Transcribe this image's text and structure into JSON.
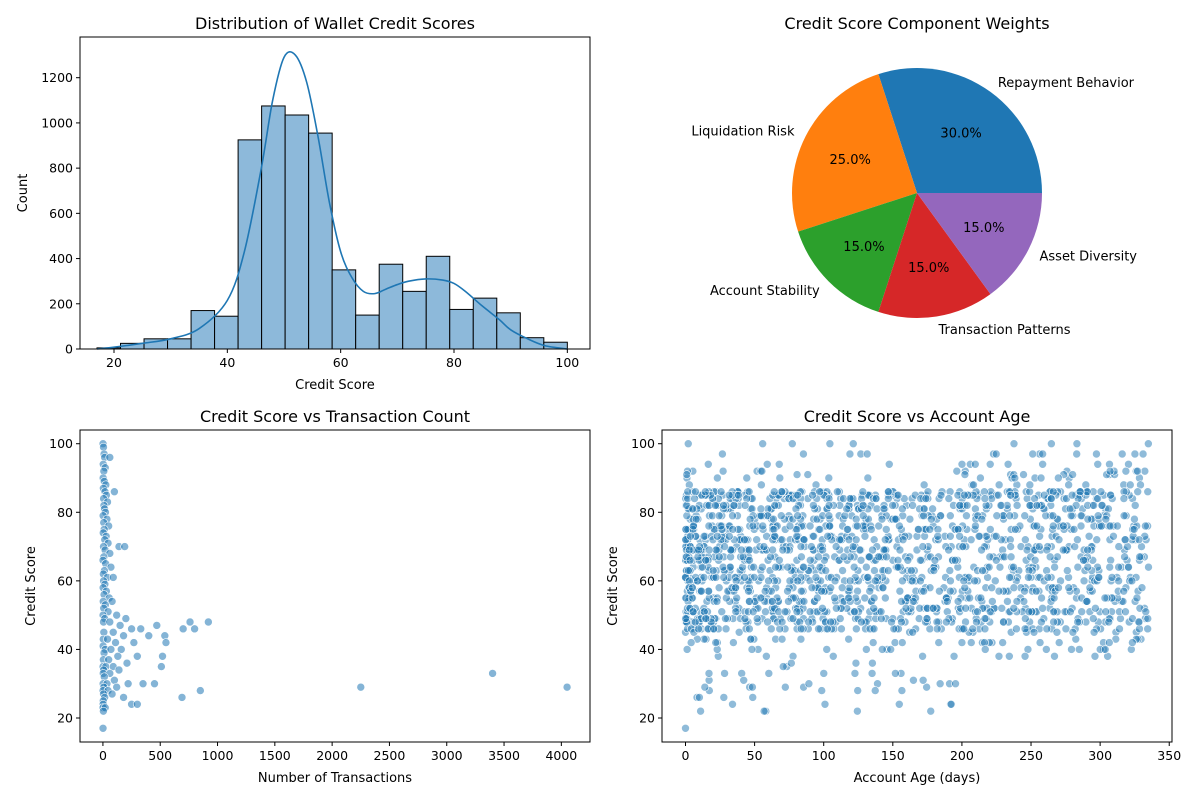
{
  "chart_data": [
    {
      "type": "bar",
      "title": "Distribution of Wallet Credit Scores",
      "xlabel": "Credit Score",
      "ylabel": "Count",
      "xlim": [
        14,
        104
      ],
      "ylim": [
        0,
        1380
      ],
      "xticks": [
        20,
        40,
        60,
        80,
        100
      ],
      "yticks": [
        0,
        200,
        400,
        600,
        800,
        1000,
        1200
      ],
      "bin_edges": [
        17,
        21.15,
        25.3,
        29.45,
        33.6,
        37.75,
        41.9,
        46.05,
        50.2,
        54.35,
        58.5,
        62.65,
        66.8,
        70.95,
        75.1,
        79.25,
        83.4,
        87.55,
        91.7,
        95.85,
        100
      ],
      "values": [
        5,
        25,
        45,
        45,
        170,
        145,
        925,
        1075,
        1035,
        955,
        350,
        150,
        375,
        255,
        410,
        175,
        225,
        160,
        50,
        30
      ],
      "kde_x": [
        17,
        20,
        25,
        30,
        35,
        40,
        43,
        46,
        48,
        50,
        52,
        54,
        56,
        58,
        60,
        62,
        64,
        66,
        68,
        70,
        72,
        75,
        78,
        80,
        82,
        85,
        88,
        90,
        93,
        96,
        100
      ],
      "kde_y": [
        0,
        8,
        25,
        45,
        90,
        215,
        430,
        800,
        1100,
        1290,
        1300,
        1180,
        940,
        650,
        430,
        315,
        255,
        245,
        265,
        285,
        300,
        310,
        305,
        290,
        255,
        190,
        130,
        85,
        45,
        15,
        0
      ],
      "colors": {
        "bar": "#8db9da",
        "edge": "#000000",
        "kde": "#1f77b4"
      }
    },
    {
      "type": "pie",
      "title": "Credit Score Component Weights",
      "labels": [
        "Repayment Behavior",
        "Liquidation Risk",
        "Account Stability",
        "Transaction Patterns",
        "Asset Diversity"
      ],
      "values": [
        30.0,
        25.0,
        15.0,
        15.0,
        15.0
      ],
      "pct_labels": [
        "30.0%",
        "25.0%",
        "15.0%",
        "15.0%",
        "15.0%"
      ],
      "colors": [
        "#1f77b4",
        "#ff7f0e",
        "#2ca02c",
        "#d62728",
        "#9467bd"
      ]
    },
    {
      "type": "scatter",
      "title": "Credit Score vs Transaction Count",
      "xlabel": "Number of Transactions",
      "ylabel": "Credit Score",
      "xlim": [
        -200,
        4250
      ],
      "ylim": [
        13,
        104
      ],
      "xticks": [
        0,
        500,
        1000,
        1500,
        2000,
        2500,
        3000,
        3500,
        4000
      ],
      "yticks": [
        20,
        40,
        60,
        80,
        100
      ],
      "color": "#1f77b4",
      "points": [
        [
          1,
          100
        ],
        [
          5,
          99
        ],
        [
          10,
          97
        ],
        [
          15,
          96
        ],
        [
          3,
          94
        ],
        [
          20,
          93
        ],
        [
          8,
          92
        ],
        [
          2,
          90
        ],
        [
          12,
          89
        ],
        [
          25,
          88
        ],
        [
          4,
          87
        ],
        [
          18,
          86
        ],
        [
          30,
          85
        ],
        [
          6,
          84
        ],
        [
          40,
          83
        ],
        [
          9,
          82
        ],
        [
          14,
          81
        ],
        [
          22,
          80
        ],
        [
          2,
          79
        ],
        [
          35,
          78
        ],
        [
          7,
          77
        ],
        [
          50,
          76
        ],
        [
          11,
          75
        ],
        [
          3,
          74
        ],
        [
          28,
          73
        ],
        [
          16,
          72
        ],
        [
          45,
          71
        ],
        [
          5,
          70
        ],
        [
          19,
          69
        ],
        [
          60,
          68
        ],
        [
          8,
          67
        ],
        [
          1,
          66
        ],
        [
          24,
          65
        ],
        [
          70,
          64
        ],
        [
          13,
          63
        ],
        [
          4,
          62
        ],
        [
          38,
          61
        ],
        [
          90,
          61
        ],
        [
          6,
          60
        ],
        [
          17,
          59
        ],
        [
          2,
          58
        ],
        [
          30,
          57
        ],
        [
          10,
          56
        ],
        [
          55,
          55
        ],
        [
          3,
          54
        ],
        [
          80,
          54
        ],
        [
          21,
          53
        ],
        [
          7,
          52
        ],
        [
          45,
          51
        ],
        [
          1,
          50
        ],
        [
          15,
          49
        ],
        [
          120,
          50
        ],
        [
          200,
          49
        ],
        [
          5,
          48
        ],
        [
          60,
          48
        ],
        [
          150,
          47
        ],
        [
          250,
          46
        ],
        [
          330,
          46
        ],
        [
          8,
          45
        ],
        [
          90,
          45
        ],
        [
          180,
          44
        ],
        [
          400,
          44
        ],
        [
          3,
          43
        ],
        [
          40,
          43
        ],
        [
          110,
          42
        ],
        [
          270,
          42
        ],
        [
          2,
          41
        ],
        [
          20,
          40
        ],
        [
          70,
          40
        ],
        [
          160,
          40
        ],
        [
          10,
          39
        ],
        [
          130,
          38
        ],
        [
          300,
          38
        ],
        [
          4,
          37
        ],
        [
          50,
          37
        ],
        [
          210,
          36
        ],
        [
          1,
          35
        ],
        [
          25,
          35
        ],
        [
          90,
          35
        ],
        [
          6,
          34
        ],
        [
          140,
          34
        ],
        [
          3,
          33
        ],
        [
          60,
          33
        ],
        [
          12,
          32
        ],
        [
          100,
          31
        ],
        [
          2,
          30
        ],
        [
          35,
          30
        ],
        [
          220,
          30
        ],
        [
          350,
          30
        ],
        [
          450,
          30
        ],
        [
          8,
          29
        ],
        [
          120,
          29
        ],
        [
          1,
          28
        ],
        [
          45,
          28
        ],
        [
          5,
          27
        ],
        [
          80,
          27
        ],
        [
          15,
          26
        ],
        [
          180,
          26
        ],
        [
          3,
          25
        ],
        [
          250,
          24
        ],
        [
          300,
          24
        ],
        [
          2,
          24
        ],
        [
          1,
          23
        ],
        [
          20,
          23
        ],
        [
          4,
          22
        ],
        [
          1,
          17
        ],
        [
          60,
          96
        ],
        [
          100,
          86
        ],
        [
          140,
          70
        ],
        [
          190,
          70
        ],
        [
          470,
          47
        ],
        [
          540,
          44
        ],
        [
          550,
          42
        ],
        [
          520,
          38
        ],
        [
          510,
          35
        ],
        [
          690,
          26
        ],
        [
          850,
          28
        ],
        [
          700,
          46
        ],
        [
          760,
          48
        ],
        [
          800,
          46
        ],
        [
          920,
          48
        ],
        [
          2250,
          29
        ],
        [
          3400,
          33
        ],
        [
          4050,
          29
        ]
      ]
    },
    {
      "type": "scatter",
      "title": "Credit Score vs Account Age",
      "xlabel": "Account Age (days)",
      "ylabel": "Credit Score",
      "xlim": [
        -17,
        352
      ],
      "ylim": [
        13,
        104
      ],
      "xticks": [
        0,
        50,
        100,
        150,
        200,
        250,
        300,
        350
      ],
      "yticks": [
        20,
        40,
        60,
        80,
        100
      ],
      "color": "#1f77b4",
      "n_points": 1800,
      "seed": 7
    }
  ]
}
